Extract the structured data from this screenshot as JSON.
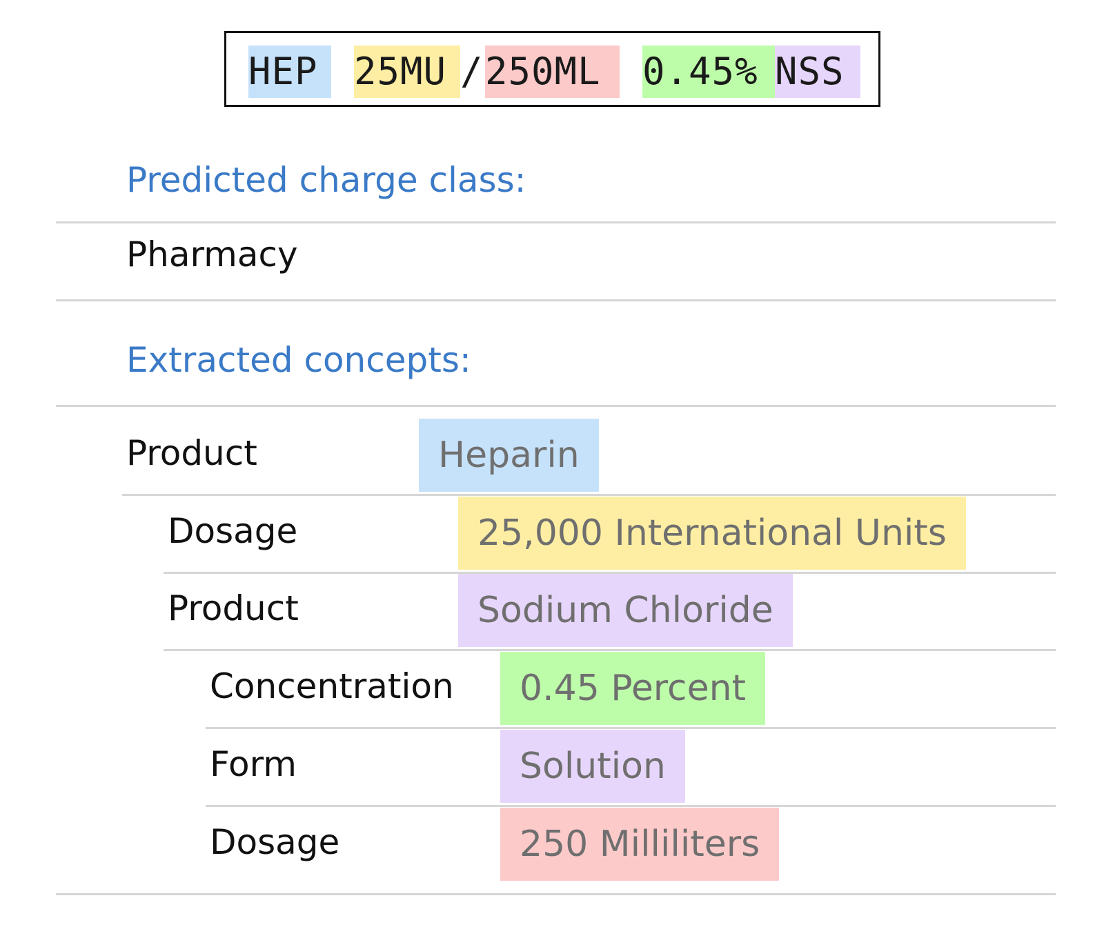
{
  "raw_code": {
    "segments": [
      {
        "text": "HEP",
        "color": "#c6e2fb"
      },
      {
        "text": " ",
        "color": ""
      },
      {
        "text": "25MU",
        "color": "#fdeea3"
      },
      {
        "text": "/",
        "color": ""
      },
      {
        "text": "250ML",
        "color": "#fdcaca"
      },
      {
        "text": " ",
        "color": ""
      },
      {
        "text": "0.45%",
        "color": "#bdfda9"
      },
      {
        "text": "NSS",
        "color": "#e7d6fb"
      }
    ]
  },
  "predicted_charge_class": {
    "heading": "Predicted charge class:",
    "value": "Pharmacy"
  },
  "extracted_concepts": {
    "heading": "Extracted concepts:",
    "rows": [
      {
        "label": "Product",
        "value": "Heparin",
        "color": "#c6e2fb"
      },
      {
        "label": "Dosage",
        "value": "25,000 International Units",
        "color": "#fdeea3"
      },
      {
        "label": "Product",
        "value": "Sodium Chloride",
        "color": "#e7d6fb"
      },
      {
        "label": "Concentration",
        "value": "0.45 Percent",
        "color": "#bdfda9"
      },
      {
        "label": "Form",
        "value": "Solution",
        "color": "#e7d6fb"
      },
      {
        "label": "Dosage",
        "value": "250 Milliliters",
        "color": "#fdcaca"
      }
    ]
  },
  "colors": {
    "heading": "#3a7ac7",
    "rule": "#d6d6d6"
  }
}
